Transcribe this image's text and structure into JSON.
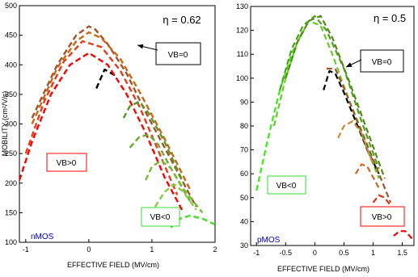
{
  "chart_data": [
    {
      "type": "line",
      "eta_label": "η = 0.62",
      "xlabel": "EFFECTIVE FIELD (MV/cm)",
      "ylabel": "MOBILITY (cm²/V/s)",
      "xlim": [
        -1.1,
        2.0
      ],
      "ylim": [
        100,
        500
      ],
      "xticks": [
        "-1",
        "0",
        "1",
        "2"
      ],
      "yticks": [
        "100",
        "150",
        "200",
        "250",
        "300",
        "350",
        "400",
        "450",
        "500"
      ],
      "device_label": "nMOS",
      "annotations": {
        "vb_zero": "VB=0",
        "vb_positive": "VB>0",
        "vb_negative": "VB<0"
      },
      "series": [
        {
          "color": "#000000",
          "x": [
            0.12,
            0.25,
            0.45
          ],
          "y": [
            360,
            392,
            380
          ]
        },
        {
          "color": "#a0522d",
          "x": [
            -0.9,
            -0.5,
            -0.2,
            0.0,
            0.1,
            0.3,
            0.6,
            0.9,
            1.3,
            1.7
          ],
          "y": [
            310,
            400,
            450,
            465,
            460,
            435,
            385,
            320,
            240,
            160
          ]
        },
        {
          "color": "#cc6611",
          "x": [
            -0.9,
            -0.5,
            -0.2,
            0.0,
            0.2,
            0.5,
            0.8,
            1.2,
            1.6
          ],
          "y": [
            300,
            395,
            440,
            455,
            445,
            410,
            355,
            275,
            190
          ]
        },
        {
          "color": "#e83a1a",
          "x": [
            -1.0,
            -0.7,
            -0.4,
            -0.1,
            0.2,
            0.5,
            0.8,
            1.1,
            1.4
          ],
          "y": [
            250,
            340,
            405,
            440,
            430,
            390,
            330,
            255,
            180
          ]
        },
        {
          "color": "#ff0000",
          "x": [
            -1.1,
            -0.9,
            -0.6,
            -0.3,
            0.0,
            0.3,
            0.6,
            0.9,
            1.2,
            1.5
          ],
          "y": [
            205,
            270,
            350,
            400,
            420,
            400,
            350,
            285,
            210,
            150
          ]
        },
        {
          "color": "#559922",
          "x": [
            0.55,
            0.65,
            0.8,
            0.95,
            1.2,
            1.5
          ],
          "y": [
            310,
            330,
            338,
            318,
            270,
            200
          ]
        },
        {
          "color": "#6aaa2a",
          "x": [
            0.65,
            0.8,
            0.95,
            1.1,
            1.3,
            1.6
          ],
          "y": [
            260,
            278,
            282,
            265,
            225,
            170
          ]
        },
        {
          "color": "#77bb33",
          "x": [
            0.9,
            1.0,
            1.15,
            1.3,
            1.5,
            1.8
          ],
          "y": [
            205,
            228,
            238,
            225,
            190,
            150
          ]
        },
        {
          "color": "#88cc44",
          "x": [
            1.05,
            1.2,
            1.35,
            1.5,
            1.7
          ],
          "y": [
            160,
            185,
            198,
            185,
            155
          ]
        },
        {
          "color": "#44dd22",
          "x": [
            1.3,
            1.45,
            1.6,
            1.8,
            2.0
          ],
          "y": [
            125,
            140,
            145,
            140,
            130
          ]
        }
      ]
    },
    {
      "type": "line",
      "eta_label": "η = 0.5",
      "xlabel": "EFFECTIVE FIELD (MV/cm)",
      "ylabel": "",
      "xlim": [
        -1.1,
        1.7
      ],
      "ylim": [
        30,
        130
      ],
      "xticks": [
        "-1",
        "-0.5",
        "0",
        "0.5",
        "1",
        "1.5"
      ],
      "yticks": [
        "30",
        "40",
        "50",
        "60",
        "70",
        "80",
        "90",
        "100",
        "110",
        "120",
        "130"
      ],
      "device_label": "pMOS",
      "annotations": {
        "vb_zero": "VB=0",
        "vb_positive": "VB>0",
        "vb_negative": "VB<0"
      },
      "series": [
        {
          "color": "#33ee11",
          "x": [
            -1.0,
            -0.8,
            -0.6,
            -0.4,
            -0.2
          ],
          "y": [
            53,
            75,
            95,
            110,
            120
          ]
        },
        {
          "color": "#66cc22",
          "x": [
            -0.7,
            -0.5,
            -0.3,
            -0.1,
            0.1,
            0.3,
            0.6,
            0.9,
            1.1
          ],
          "y": [
            80,
            100,
            115,
            124,
            122,
            110,
            90,
            70,
            58
          ]
        },
        {
          "color": "#4aa022",
          "x": [
            -0.6,
            -0.4,
            -0.2,
            0.0,
            0.2,
            0.5,
            0.8,
            1.1
          ],
          "y": [
            95,
            112,
            122,
            126,
            120,
            104,
            82,
            62
          ]
        },
        {
          "color": "#558811",
          "x": [
            -0.5,
            -0.3,
            -0.1,
            0.1,
            0.3,
            0.6,
            0.9,
            1.2
          ],
          "y": [
            100,
            115,
            124,
            126,
            117,
            98,
            78,
            58
          ]
        },
        {
          "color": "#000000",
          "x": [
            0.15,
            0.25,
            0.35,
            0.5,
            0.7,
            0.9,
            1.1
          ],
          "y": [
            95,
            103,
            102,
            94,
            82,
            70,
            60
          ]
        },
        {
          "color": "#a0522d",
          "x": [
            0.2,
            0.35,
            0.55,
            0.8,
            1.1,
            1.3
          ],
          "y": [
            104,
            104,
            93,
            78,
            60,
            48
          ]
        },
        {
          "color": "#cc8833",
          "x": [
            0.4,
            0.5,
            0.65,
            0.8,
            1.0
          ],
          "y": [
            75,
            80,
            82,
            77,
            64
          ]
        },
        {
          "color": "#cc6622",
          "x": [
            0.7,
            0.8,
            0.9,
            1.1
          ],
          "y": [
            60,
            64,
            63,
            54
          ]
        },
        {
          "color": "#dd3311",
          "x": [
            1.0,
            1.1,
            1.2,
            1.35
          ],
          "y": [
            48,
            51,
            50,
            45
          ]
        },
        {
          "color": "#ff0000",
          "x": [
            1.35,
            1.45,
            1.55,
            1.7
          ],
          "y": [
            34,
            36,
            36,
            32
          ]
        }
      ]
    }
  ]
}
